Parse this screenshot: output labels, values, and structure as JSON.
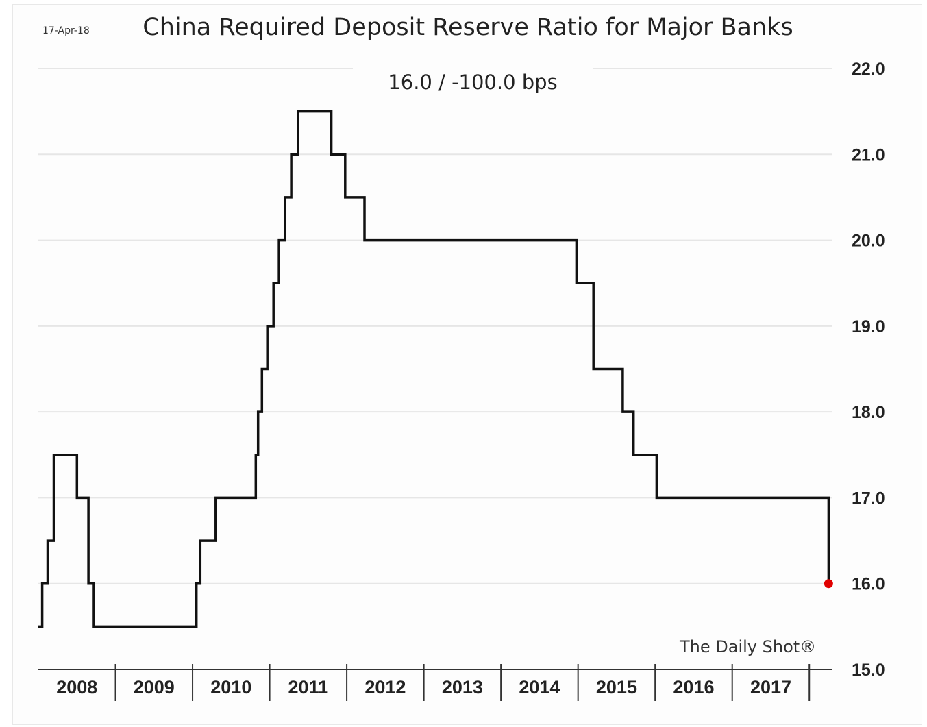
{
  "header": {
    "date": "17-Apr-18",
    "title": "China Required Deposit Reserve Ratio for Major Banks",
    "subtitle": "16.0  /  -100.0 bps",
    "watermark": "The Daily Shot®"
  },
  "colors": {
    "line": "#111111",
    "last_point": "#e00000",
    "grid": "#e6e6e6",
    "axis": "#333333"
  },
  "chart_data": {
    "type": "line",
    "title": "China Required Deposit Reserve Ratio for Major Banks",
    "subtitle": "16.0  /  -100.0 bps",
    "xlabel": "",
    "ylabel": "",
    "x_categories": [
      "2008",
      "2009",
      "2010",
      "2011",
      "2012",
      "2013",
      "2014",
      "2015",
      "2016",
      "2017"
    ],
    "xlim": [
      2008.0,
      2018.3
    ],
    "ylim": [
      15.0,
      22.0
    ],
    "y_ticks": [
      "22.0",
      "21.0",
      "20.0",
      "19.0",
      "18.0",
      "17.0",
      "16.0",
      "15.0"
    ],
    "y_axis_position": "right",
    "grid": true,
    "series": [
      {
        "step": true,
        "points": [
          {
            "x": 2008.0,
            "y": 15.5
          },
          {
            "x": 2008.05,
            "y": 16.0
          },
          {
            "x": 2008.12,
            "y": 16.5
          },
          {
            "x": 2008.2,
            "y": 17.5
          },
          {
            "x": 2008.5,
            "y": 17.0
          },
          {
            "x": 2008.65,
            "y": 16.0
          },
          {
            "x": 2008.72,
            "y": 15.5
          },
          {
            "x": 2010.05,
            "y": 16.0
          },
          {
            "x": 2010.1,
            "y": 16.5
          },
          {
            "x": 2010.3,
            "y": 17.0
          },
          {
            "x": 2010.82,
            "y": 17.5
          },
          {
            "x": 2010.85,
            "y": 18.0
          },
          {
            "x": 2010.9,
            "y": 18.5
          },
          {
            "x": 2010.97,
            "y": 19.0
          },
          {
            "x": 2011.05,
            "y": 19.5
          },
          {
            "x": 2011.12,
            "y": 20.0
          },
          {
            "x": 2011.2,
            "y": 20.5
          },
          {
            "x": 2011.28,
            "y": 21.0
          },
          {
            "x": 2011.37,
            "y": 21.5
          },
          {
            "x": 2011.8,
            "y": 21.0
          },
          {
            "x": 2011.98,
            "y": 20.5
          },
          {
            "x": 2012.23,
            "y": 20.0
          },
          {
            "x": 2014.98,
            "y": 19.5
          },
          {
            "x": 2015.2,
            "y": 18.5
          },
          {
            "x": 2015.58,
            "y": 18.0
          },
          {
            "x": 2015.72,
            "y": 17.5
          },
          {
            "x": 2016.02,
            "y": 17.0
          },
          {
            "x": 2018.25,
            "y": 16.0
          }
        ]
      }
    ],
    "last_value": 16.0
  }
}
